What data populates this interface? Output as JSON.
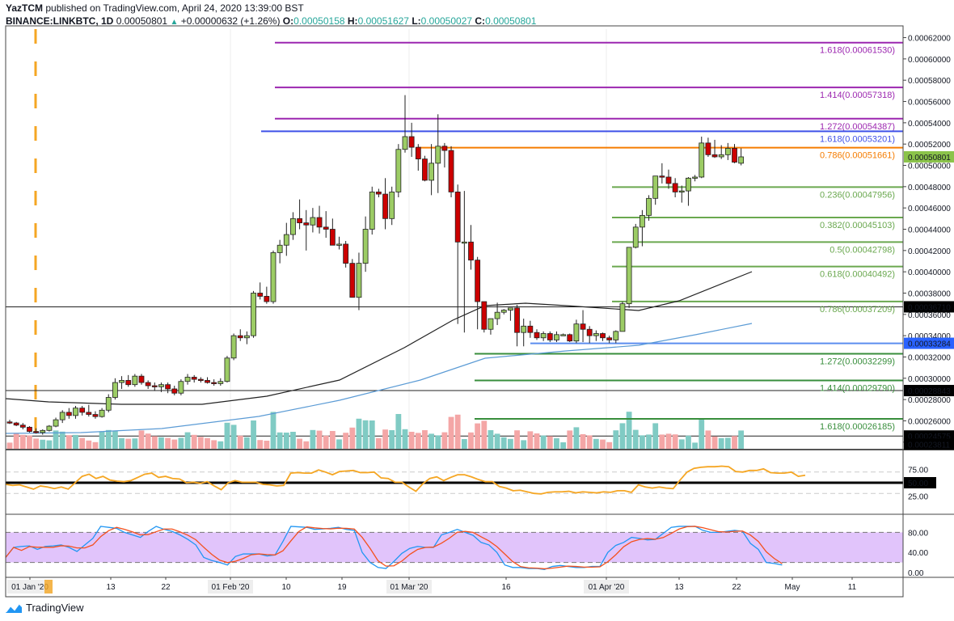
{
  "header": {
    "publisher": "YazTCM",
    "published_text": " published on TradingView.com, April 24, 2020 13:39:00 BST",
    "symbol": "BINANCE:LINKBTC, 1D",
    "last": "0.00050801",
    "change_icon": "up-triangle-icon",
    "change": "+0.00000632 (+1.26%)",
    "o_label": "O:",
    "o": "0.00050158",
    "h_label": "H:",
    "h": "0.00051627",
    "l_label": "L:",
    "l": "0.00050027",
    "c_label": "C:",
    "c": "0.00050801"
  },
  "footer": {
    "brand": "TradingView",
    "icon": "tradingview-logo-icon"
  },
  "colors": {
    "bull": "#9ccc65",
    "bear": "#cc0000",
    "vol_bull": "#80cbc4",
    "vol_bear": "#f4a6a6",
    "fib_ext_purple": "#9c27b0",
    "fib_blue": "#3f51e8",
    "fib_orange": "#f57c00",
    "fib_green": "#6aa84f",
    "fib_dark_green": "#388e3c",
    "rsi": "#f5a623",
    "stoch_k": "#2196f3",
    "stoch_d": "#f4511e",
    "stoch_band": "#e1c4fb",
    "ma200": "#5b9bd5",
    "ma100": "#222222",
    "price_badge": "#8bc34a",
    "support_badge": "#2962ff"
  },
  "chart_data": {
    "type": "candlestick",
    "title": "BINANCE:LINKBTC, 1D",
    "price_axis": {
      "ticks": [
        "0.00062000",
        "0.00060000",
        "0.00058000",
        "0.00056000",
        "0.00054000",
        "0.00052000",
        "0.00050000",
        "0.00048000",
        "0.00046000",
        "0.00044000",
        "0.00042000",
        "0.00040000",
        "0.00038000",
        "0.00036000",
        "0.00034000",
        "0.00032000",
        "0.00030000",
        "0.00028000",
        "0.00026000",
        "0.00024000"
      ],
      "ylim": [
        0.000233,
        0.000628
      ],
      "badges": [
        {
          "value": "0.00050801",
          "kind": "last-price"
        },
        {
          "value": "0.00036710",
          "kind": "horizontal-line"
        },
        {
          "value": "0.00033284",
          "kind": "support"
        },
        {
          "value": "0.00028843",
          "kind": "horizontal-line"
        },
        {
          "value": "0.00024575",
          "kind": "horizontal-line"
        },
        {
          "value": "0.00023811",
          "kind": "horizontal-line"
        }
      ]
    },
    "time_axis": {
      "ticks": [
        "01 Jan '20",
        "13",
        "22",
        "01 Feb '20",
        "10",
        "19",
        "01 Mar '20",
        "16",
        "01 Apr '20",
        "13",
        "22",
        "May",
        "11"
      ]
    },
    "fib_levels": [
      {
        "ratio": "1.618",
        "price": "0.00061530",
        "label": "1.618(0.00061530)",
        "group": "ext-purple"
      },
      {
        "ratio": "1.414",
        "price": "0.00057318",
        "label": "1.414(0.00057318)",
        "group": "ext-purple"
      },
      {
        "ratio": "1.272",
        "price": "0.00054387",
        "label": "1.272(0.00054387)",
        "group": "ext-purple"
      },
      {
        "ratio": "1.618",
        "price": "0.00053201",
        "label": "1.618(0.00053201)",
        "group": "blue"
      },
      {
        "ratio": "0.786",
        "price": "0.00051661",
        "label": "0.786(0.00051661)",
        "group": "orange"
      },
      {
        "ratio": "0.236",
        "price": "0.00047956",
        "label": "0.236(0.00047956)",
        "group": "green"
      },
      {
        "ratio": "0.382",
        "price": "0.00045103",
        "label": "0.382(0.00045103)",
        "group": "green"
      },
      {
        "ratio": "0.5",
        "price": "0.00042798",
        "label": "0.5(0.00042798)",
        "group": "green"
      },
      {
        "ratio": "0.618",
        "price": "0.00040492",
        "label": "0.618(0.00040492)",
        "group": "green"
      },
      {
        "ratio": "0.786",
        "price": "0.00037209",
        "label": "0.786(0.00037209)",
        "group": "green"
      },
      {
        "ratio": "1.272",
        "price": "0.00032299",
        "label": "1.272(0.00032299)",
        "group": "dark-green"
      },
      {
        "ratio": "1.414",
        "price": "0.00029790",
        "label": "1.414(0.00029790)",
        "group": "dark-green"
      },
      {
        "ratio": "1.618",
        "price": "0.00026185",
        "label": "1.618(0.00026185)",
        "group": "dark-green"
      }
    ],
    "candles_ohlc_approx": [
      [
        0.000259,
        0.000261,
        0.000257,
        0.000258
      ],
      [
        0.000258,
        0.000259,
        0.000255,
        0.000256
      ],
      [
        0.000256,
        0.000258,
        0.000252,
        0.000254
      ],
      [
        0.000254,
        0.000255,
        0.000249,
        0.00025
      ],
      [
        0.00025,
        0.000253,
        0.000248,
        0.000249
      ],
      [
        0.000249,
        0.000252,
        0.000247,
        0.000251
      ],
      [
        0.000251,
        0.000256,
        0.00025,
        0.000255
      ],
      [
        0.000255,
        0.000263,
        0.000254,
        0.000261
      ],
      [
        0.000261,
        0.00027,
        0.000258,
        0.000268
      ],
      [
        0.000268,
        0.000272,
        0.000262,
        0.000265
      ],
      [
        0.000265,
        0.000274,
        0.000262,
        0.000272
      ],
      [
        0.000272,
        0.000274,
        0.000265,
        0.000268
      ],
      [
        0.000268,
        0.000275,
        0.000264,
        0.000266
      ],
      [
        0.000266,
        0.000269,
        0.000262,
        0.000264
      ],
      [
        0.000264,
        0.000272,
        0.000263,
        0.00027
      ],
      [
        0.00027,
        0.000285,
        0.000268,
        0.000282
      ],
      [
        0.000282,
        0.0003,
        0.00028,
        0.000296
      ],
      [
        0.000296,
        0.000302,
        0.00029,
        0.000298
      ],
      [
        0.000298,
        0.000303,
        0.000292,
        0.000294
      ],
      [
        0.000294,
        0.000304,
        0.000292,
        0.000302
      ],
      [
        0.000302,
        0.000304,
        0.000294,
        0.000296
      ],
      [
        0.000296,
        0.000298,
        0.00029,
        0.000293
      ],
      [
        0.000293,
        0.000296,
        0.000288,
        0.000292
      ],
      [
        0.000292,
        0.000296,
        0.000287,
        0.000294
      ],
      [
        0.000294,
        0.000296,
        0.000286,
        0.00029
      ],
      [
        0.00029,
        0.000293,
        0.000284,
        0.000286
      ],
      [
        0.000286,
        0.000299,
        0.000284,
        0.000297
      ],
      [
        0.000297,
        0.000304,
        0.000294,
        0.000301
      ],
      [
        0.000301,
        0.000303,
        0.000296,
        0.000299
      ],
      [
        0.000299,
        0.000301,
        0.000296,
        0.000298
      ],
      [
        0.000298,
        0.000301,
        0.000295,
        0.000296
      ],
      [
        0.000296,
        0.000299,
        0.000293,
        0.000295
      ],
      [
        0.000295,
        0.0003,
        0.000293,
        0.000297
      ],
      [
        0.000297,
        0.000321,
        0.000296,
        0.000319
      ],
      [
        0.000319,
        0.000342,
        0.000317,
        0.00034
      ],
      [
        0.00034,
        0.000346,
        0.000335,
        0.000338
      ],
      [
        0.000338,
        0.000344,
        0.000332,
        0.00034
      ],
      [
        0.00034,
        0.000382,
        0.000338,
        0.00038
      ],
      [
        0.00038,
        0.00039,
        0.000374,
        0.000377
      ],
      [
        0.000377,
        0.000386,
        0.00037,
        0.000372
      ],
      [
        0.000372,
        0.00042,
        0.00037,
        0.000418
      ],
      [
        0.000418,
        0.00043,
        0.000408,
        0.000425
      ],
      [
        0.000425,
        0.000446,
        0.000415,
        0.000435
      ],
      [
        0.000435,
        0.000456,
        0.00043,
        0.00045
      ],
      [
        0.00045,
        0.000468,
        0.00044,
        0.000446
      ],
      [
        0.000446,
        0.000458,
        0.00042,
        0.000444
      ],
      [
        0.000444,
        0.00046,
        0.000437,
        0.000451
      ],
      [
        0.000451,
        0.000462,
        0.000436,
        0.000442
      ],
      [
        0.000442,
        0.000457,
        0.000432,
        0.00044
      ],
      [
        0.00044,
        0.00045,
        0.000428,
        0.000425
      ],
      [
        0.000425,
        0.000433,
        0.000421,
        0.000426
      ],
      [
        0.000426,
        0.000429,
        0.000404,
        0.000408
      ],
      [
        0.000408,
        0.000412,
        0.00038,
        0.000376
      ],
      [
        0.000376,
        0.000418,
        0.000364,
        0.000408
      ],
      [
        0.000408,
        0.000452,
        0.0004,
        0.00044
      ],
      [
        0.00044,
        0.00048,
        0.000435,
        0.000475
      ],
      [
        0.000475,
        0.000478,
        0.00047,
        0.000473
      ],
      [
        0.000473,
        0.000488,
        0.00044,
        0.00045
      ],
      [
        0.00045,
        0.00048,
        0.000444,
        0.000475
      ],
      [
        0.000475,
        0.00052,
        0.00047,
        0.000515
      ],
      [
        0.000515,
        0.000566,
        0.000512,
        0.000527
      ],
      [
        0.000527,
        0.00054,
        0.000508,
        0.000517
      ],
      [
        0.000517,
        0.00052,
        0.000495,
        0.000506
      ],
      [
        0.000506,
        0.000509,
        0.000485,
        0.000486
      ],
      [
        0.000486,
        0.00052,
        0.000472,
        0.000502
      ],
      [
        0.000502,
        0.000548,
        0.000474,
        0.000518
      ],
      [
        0.000518,
        0.000521,
        0.000498,
        0.000514
      ],
      [
        0.000514,
        0.000518,
        0.00047,
        0.000475
      ],
      [
        0.000475,
        0.000482,
        0.000351,
        0.000428
      ],
      [
        0.000428,
        0.000476,
        0.000343,
        0.000428
      ],
      [
        0.000428,
        0.000444,
        0.000402,
        0.000411
      ],
      [
        0.000411,
        0.000414,
        0.000346,
        0.000372
      ],
      [
        0.000372,
        0.000372,
        0.000343,
        0.000346
      ],
      [
        0.000346,
        0.000356,
        0.000341,
        0.000356
      ],
      [
        0.000356,
        0.000371,
        0.00035,
        0.000362
      ],
      [
        0.000362,
        0.000365,
        0.00036,
        0.000364
      ],
      [
        0.000364,
        0.000366,
        0.000354,
        0.000366
      ],
      [
        0.000366,
        0.000369,
        0.00033,
        0.000343
      ],
      [
        0.000343,
        0.000356,
        0.00033,
        0.000349
      ],
      [
        0.000349,
        0.000354,
        0.000338,
        0.000343
      ],
      [
        0.000343,
        0.000346,
        0.000336,
        0.000338
      ],
      [
        0.000338,
        0.000344,
        0.000335,
        0.000342
      ],
      [
        0.000342,
        0.000344,
        0.000334,
        0.000336
      ],
      [
        0.000336,
        0.000344,
        0.000334,
        0.000341
      ],
      [
        0.000341,
        0.000342,
        0.00034,
        0.000341
      ],
      [
        0.000341,
        0.000342,
        0.000334,
        0.000335
      ],
      [
        0.000335,
        0.000355,
        0.000333,
        0.000351
      ],
      [
        0.000351,
        0.000364,
        0.000334,
        0.000346
      ],
      [
        0.000346,
        0.000349,
        0.000333,
        0.00034
      ],
      [
        0.00034,
        0.000345,
        0.000335,
        0.000342
      ],
      [
        0.000342,
        0.000343,
        0.000335,
        0.000338
      ],
      [
        0.000338,
        0.00034,
        0.000333,
        0.000336
      ],
      [
        0.000336,
        0.000345,
        0.000333,
        0.000344
      ],
      [
        0.000344,
        0.000372,
        0.000344,
        0.00037
      ],
      [
        0.00037,
        0.00042,
        0.000366,
        0.000423
      ],
      [
        0.000423,
        0.000445,
        0.000422,
        0.000442
      ],
      [
        0.000442,
        0.000458,
        0.000424,
        0.000453
      ],
      [
        0.000453,
        0.000472,
        0.000448,
        0.000469
      ],
      [
        0.000469,
        0.00049,
        0.000463,
        0.00049
      ],
      [
        0.00049,
        0.000502,
        0.000483,
        0.000489
      ],
      [
        0.000489,
        0.000496,
        0.000478,
        0.000483
      ],
      [
        0.000483,
        0.000488,
        0.00047,
        0.000475
      ],
      [
        0.000475,
        0.000481,
        0.000465,
        0.000476
      ],
      [
        0.000476,
        0.000489,
        0.000462,
        0.000488
      ],
      [
        0.000488,
        0.000491,
        0.000485,
        0.000489
      ],
      [
        0.000489,
        0.000527,
        0.000488,
        0.000521
      ],
      [
        0.000521,
        0.000526,
        0.000508,
        0.00051
      ],
      [
        0.00051,
        0.000524,
        0.000507,
        0.000508
      ],
      [
        0.000508,
        0.000519,
        0.000506,
        0.00051
      ],
      [
        0.00051,
        0.000521,
        0.000505,
        0.000516
      ],
      [
        0.000516,
        0.00052,
        0.000502,
        0.000503
      ],
      [
        0.000502,
        0.000516,
        0.0005,
        0.000508
      ]
    ],
    "indicators": {
      "rsi": {
        "ticks": [
          "75.00",
          "50.00",
          "25.00"
        ],
        "highlight": "50.00",
        "bands": [
          70,
          30
        ]
      },
      "stoch_rsi": {
        "ticks": [
          "80.00",
          "40.00",
          "0.00"
        ],
        "bands": [
          80,
          20
        ]
      },
      "ma_lines": [
        "black moving average (100)",
        "blue moving average (200)"
      ]
    }
  }
}
